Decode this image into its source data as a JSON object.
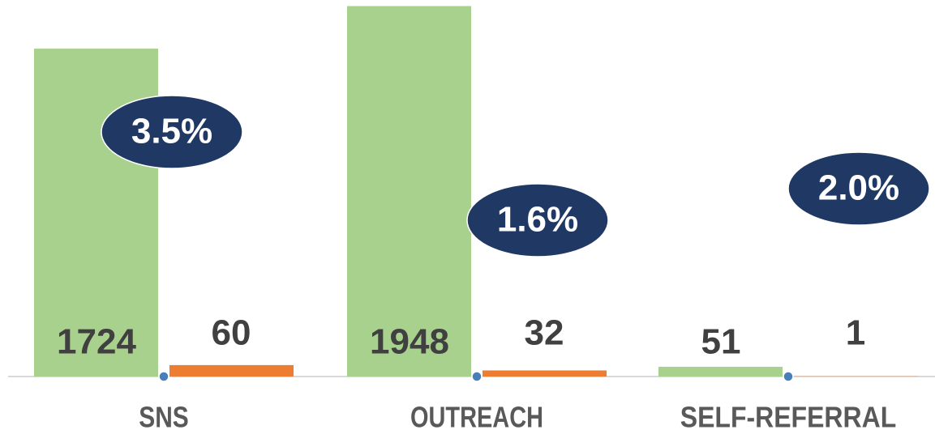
{
  "chart_data": {
    "type": "bar",
    "categories": [
      "SNS",
      "OUTREACH",
      "SELF-REFERRAL"
    ],
    "series": [
      {
        "color": "#a9d18e",
        "values": [
          1724,
          1948,
          51
        ]
      },
      {
        "color": "#ed7d31",
        "values": [
          60,
          32,
          1
        ]
      },
      {
        "color": "#1f3864",
        "values": [
          3.5,
          1.6,
          2.0
        ],
        "value_labels": [
          "3.5%",
          "1.6%",
          "2.0%"
        ]
      }
    ],
    "ylim": [
      0,
      1950
    ]
  }
}
